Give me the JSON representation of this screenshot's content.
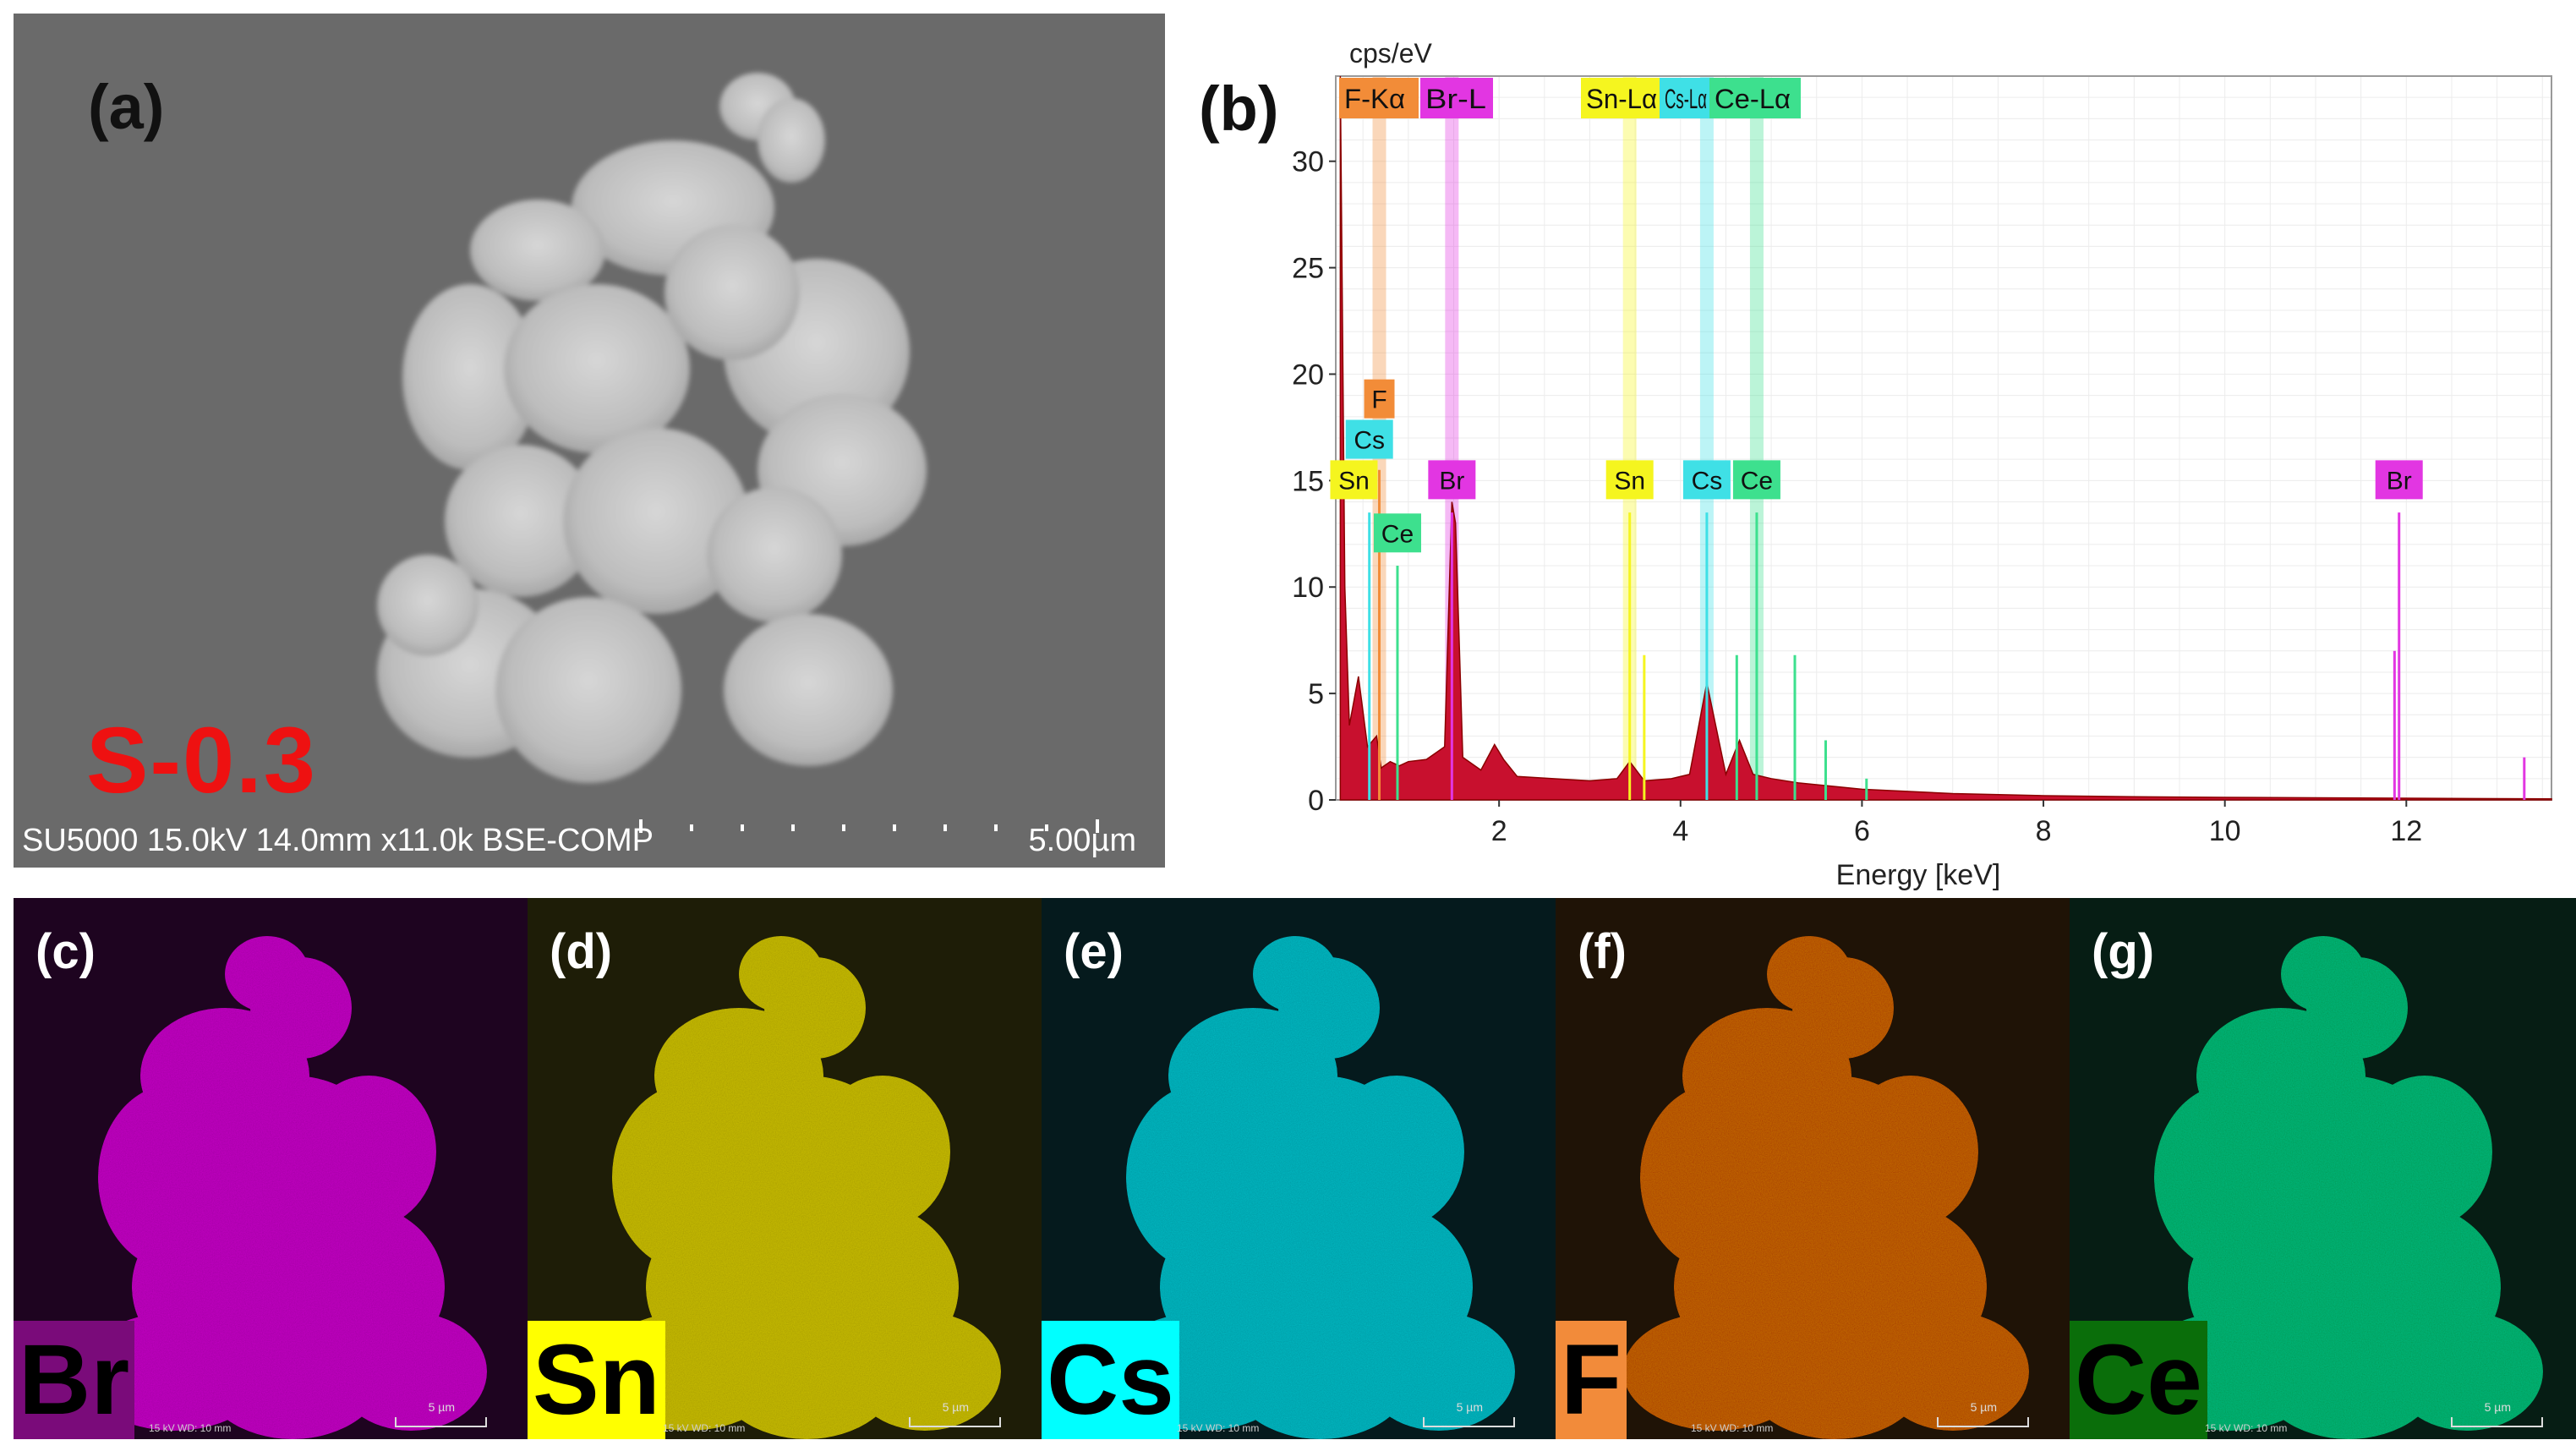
{
  "panel_a": {
    "label": "(a)",
    "sample": "S-0.3",
    "instrument_info": "SU5000 15.0kV 14.0mm x11.0k BSE-COMP",
    "scale_bar": "5.00µm"
  },
  "panel_b": {
    "label": "(b)",
    "chart_data": {
      "type": "line",
      "title": "",
      "ylabel": "cps/eV",
      "xlabel": "Energy [keV]",
      "xlim": [
        0.2,
        13.6
      ],
      "ylim": [
        0,
        34
      ],
      "x_ticks": [
        2,
        4,
        6,
        8,
        10,
        12
      ],
      "y_ticks": [
        0,
        5,
        10,
        15,
        20,
        25,
        30
      ],
      "grid": true,
      "spectrum": {
        "name": "EDS spectrum",
        "color": "#c8102e",
        "x": [
          0.25,
          0.3,
          0.35,
          0.45,
          0.55,
          0.65,
          0.7,
          0.8,
          0.9,
          1.0,
          1.2,
          1.4,
          1.48,
          1.52,
          1.6,
          1.8,
          1.95,
          2.05,
          2.2,
          2.6,
          3.0,
          3.3,
          3.44,
          3.6,
          3.9,
          4.1,
          4.29,
          4.5,
          4.65,
          4.8,
          5.0,
          5.3,
          6.0,
          7.0,
          8.0,
          9.0,
          10.0,
          11.0,
          12.0,
          13.0,
          13.6
        ],
        "y": [
          34,
          10,
          3.5,
          5.8,
          2.5,
          3.0,
          1.5,
          1.8,
          1.6,
          1.8,
          1.9,
          2.5,
          14.0,
          13.0,
          2.0,
          1.4,
          2.6,
          1.9,
          1.1,
          1.0,
          0.9,
          1.0,
          1.8,
          0.9,
          1.0,
          1.2,
          5.5,
          1.2,
          2.8,
          1.2,
          1.0,
          0.8,
          0.5,
          0.3,
          0.2,
          0.15,
          0.12,
          0.1,
          0.08,
          0.06,
          0.05
        ]
      },
      "line_families": [
        {
          "name": "F-Kα",
          "color": "#f28c38",
          "energy": 0.68
        },
        {
          "name": "Br-L",
          "color": "#e236e2",
          "energy": 1.48
        },
        {
          "name": "Sn-Lα",
          "color": "#f5f51f",
          "energy": 3.44
        },
        {
          "name": "Cs-Lα",
          "color": "#3fe0e6",
          "energy": 4.29
        },
        {
          "name": "Ce-Lα",
          "color": "#3de08e",
          "energy": 4.84
        }
      ],
      "header_labels": [
        "F-Kα",
        "Br-L",
        "Sn-Lα",
        "Cs-Lα",
        "Ce-Lα"
      ],
      "peak_labels": [
        {
          "text": "F",
          "color": "#f28c38",
          "energy": 0.68,
          "level": 18.8
        },
        {
          "text": "Cs",
          "color": "#3fe0e6",
          "energy": 0.57,
          "level": 16.9
        },
        {
          "text": "Sn",
          "color": "#f5f51f",
          "energy": 0.4,
          "level": 15.0
        },
        {
          "text": "Ce",
          "color": "#3de08e",
          "energy": 0.88,
          "level": 12.5
        },
        {
          "text": "Br",
          "color": "#e236e2",
          "energy": 1.48,
          "level": 15.0
        },
        {
          "text": "Sn",
          "color": "#f5f51f",
          "energy": 3.44,
          "level": 15.0
        },
        {
          "text": "Cs",
          "color": "#3fe0e6",
          "energy": 4.29,
          "level": 15.0
        },
        {
          "text": "Ce",
          "color": "#3de08e",
          "energy": 4.84,
          "level": 15.0
        },
        {
          "text": "Br",
          "color": "#e236e2",
          "energy": 11.92,
          "level": 15.0
        }
      ],
      "marker_lines": [
        {
          "energy": 0.68,
          "height": 15.5,
          "color": "#f28c38"
        },
        {
          "energy": 0.57,
          "height": 13.5,
          "color": "#3fe0e6"
        },
        {
          "energy": 0.88,
          "height": 11,
          "color": "#3de08e"
        },
        {
          "energy": 1.48,
          "height": 13.5,
          "color": "#e236e2"
        },
        {
          "energy": 3.44,
          "height": 13.5,
          "color": "#f5f51f"
        },
        {
          "energy": 3.6,
          "height": 6.8,
          "color": "#f5f51f"
        },
        {
          "energy": 4.29,
          "height": 13.5,
          "color": "#3fe0e6"
        },
        {
          "energy": 4.62,
          "height": 6.8,
          "color": "#3de08e"
        },
        {
          "energy": 4.84,
          "height": 13.5,
          "color": "#3de08e"
        },
        {
          "energy": 5.26,
          "height": 6.8,
          "color": "#3de08e"
        },
        {
          "energy": 5.6,
          "height": 2.8,
          "color": "#3de08e"
        },
        {
          "energy": 6.05,
          "height": 1.0,
          "color": "#3de08e"
        },
        {
          "energy": 11.92,
          "height": 13.5,
          "color": "#e236e2"
        },
        {
          "energy": 11.87,
          "height": 7.0,
          "color": "#e236e2"
        },
        {
          "energy": 13.3,
          "height": 2.0,
          "color": "#e236e2"
        }
      ]
    }
  },
  "maps": [
    {
      "id": "c",
      "label": "(c)",
      "element": "Br",
      "color": "#d21fd2",
      "bg": "#1e0420",
      "box": "#7a0b7a",
      "box_text": "#000000"
    },
    {
      "id": "d",
      "label": "(d)",
      "element": "Sn",
      "color": "#d8cc1c",
      "bg": "#1e1d07",
      "box": "#ffff00",
      "box_text": "#000000"
    },
    {
      "id": "e",
      "label": "(e)",
      "element": "Cs",
      "color": "#27c8d2",
      "bg": "#051a1d",
      "box": "#00ffff",
      "box_text": "#000000"
    },
    {
      "id": "f",
      "label": "(f)",
      "element": "F",
      "color": "#d4730f",
      "bg": "#1f1306",
      "box": "#f28b3a",
      "box_text": "#000000"
    },
    {
      "id": "g",
      "label": "(g)",
      "element": "Ce",
      "color": "#22c786",
      "bg": "#061d14",
      "box": "#0a6e0a",
      "box_text": "#000000"
    }
  ],
  "map_footer": "15 kV   WD: 10 mm",
  "map_scale": "5 µm"
}
